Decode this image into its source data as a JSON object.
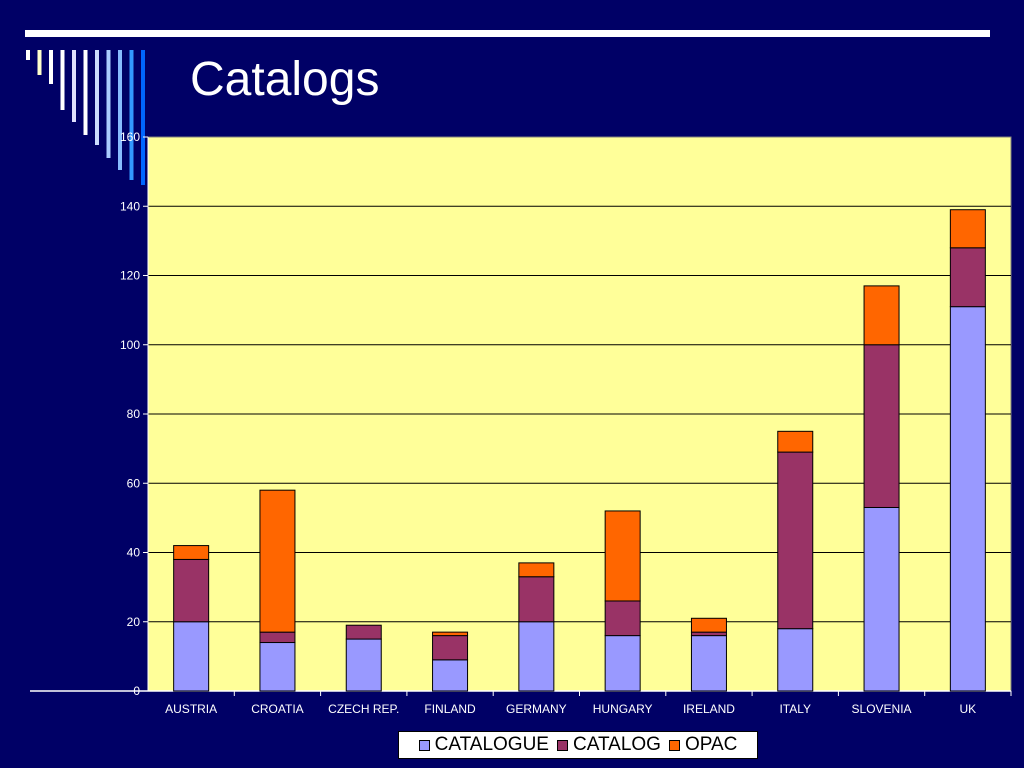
{
  "slide": {
    "title": "Catalogs"
  },
  "chart_data": {
    "type": "bar",
    "stacked": true,
    "title": "",
    "xlabel": "",
    "ylabel": "",
    "categories": [
      "AUSTRIA",
      "CROATIA",
      "CZECH REP.",
      "FINLAND",
      "GERMANY",
      "HUNGARY",
      "IRELAND",
      "ITALY",
      "SLOVENIA",
      "UK"
    ],
    "series": [
      {
        "name": "CATALOGUE",
        "color": "#9999ff",
        "values": [
          20,
          14,
          15,
          9,
          20,
          16,
          16,
          18,
          53,
          111
        ]
      },
      {
        "name": "CATALOG",
        "color": "#993366",
        "values": [
          18,
          3,
          4,
          7,
          13,
          10,
          1,
          51,
          47,
          17
        ]
      },
      {
        "name": "OPAC",
        "color": "#ff6600",
        "values": [
          4,
          41,
          0,
          1,
          4,
          26,
          4,
          6,
          17,
          11
        ]
      }
    ],
    "yticks": [
      0,
      20,
      40,
      60,
      80,
      100,
      120,
      140,
      160
    ],
    "ylim": [
      0,
      160
    ],
    "grid": true,
    "plot_background": "#ffff99",
    "legend_position": "bottom"
  }
}
